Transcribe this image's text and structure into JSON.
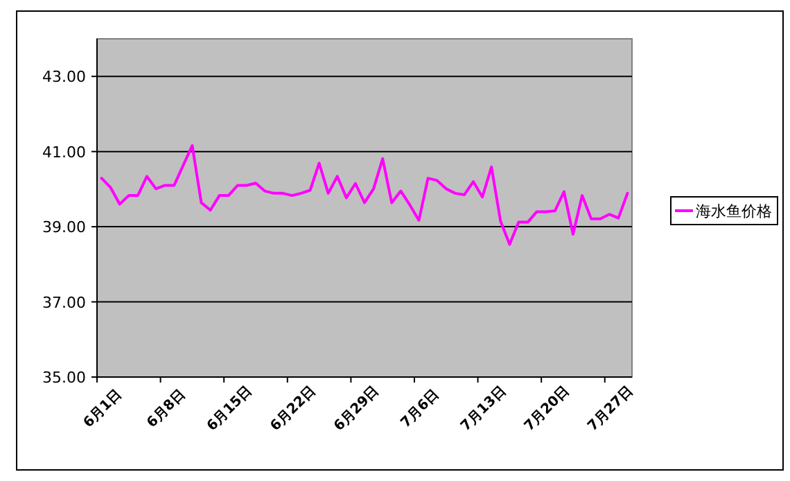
{
  "chart_data": {
    "type": "line",
    "categories": [
      "6月1日",
      null,
      null,
      null,
      null,
      null,
      null,
      "6月8日",
      null,
      null,
      null,
      null,
      null,
      null,
      "6月15日",
      null,
      null,
      null,
      null,
      null,
      null,
      "6月22日",
      null,
      null,
      null,
      null,
      null,
      null,
      "6月29日",
      null,
      null,
      null,
      null,
      null,
      null,
      "7月6日",
      null,
      null,
      null,
      null,
      null,
      null,
      "7月13日",
      null,
      null,
      null,
      null,
      null,
      null,
      "7月20日",
      null,
      null,
      null,
      null,
      null,
      null,
      "7月27日",
      null,
      null
    ],
    "series": [
      {
        "name": "海水鱼价格",
        "color": "#ff00ff",
        "values": [
          40.29,
          40.04,
          39.6,
          39.83,
          39.83,
          40.34,
          40.01,
          40.1,
          40.1,
          40.63,
          41.16,
          39.64,
          39.44,
          39.83,
          39.83,
          40.1,
          40.1,
          40.16,
          39.95,
          39.89,
          39.89,
          39.83,
          39.89,
          39.97,
          40.69,
          39.89,
          40.34,
          39.77,
          40.15,
          39.64,
          40.01,
          40.81,
          39.64,
          39.95,
          39.58,
          39.17,
          40.29,
          40.23,
          40.01,
          39.89,
          39.85,
          40.2,
          39.79,
          40.59,
          39.15,
          38.53,
          39.12,
          39.12,
          39.4,
          39.4,
          39.42,
          39.93,
          38.8,
          39.83,
          39.21,
          39.21,
          39.33,
          39.23,
          39.89
        ]
      }
    ],
    "ylim": [
      35,
      44
    ],
    "yticks": [
      {
        "value": 35,
        "label": "35.00"
      },
      {
        "value": 37,
        "label": "37.00"
      },
      {
        "value": 39,
        "label": "39.00"
      },
      {
        "value": 41,
        "label": "41.00"
      },
      {
        "value": 43,
        "label": "43.00"
      }
    ],
    "grid": "y",
    "legend": "right",
    "marker": "none",
    "line_style": "solid"
  }
}
